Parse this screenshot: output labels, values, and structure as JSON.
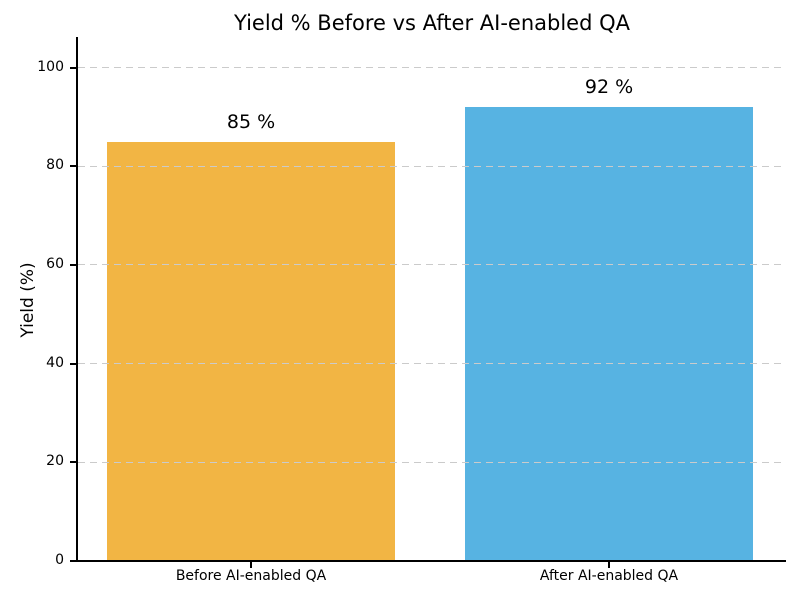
{
  "chart_data": {
    "type": "bar",
    "title": "Yield % Before vs After AI-enabled QA",
    "xlabel": "",
    "ylabel": "Yield (%)",
    "categories": [
      "Before AI-enabled QA",
      "After AI-enabled QA"
    ],
    "values": [
      85,
      92
    ],
    "value_labels": [
      "85 %",
      "92 %"
    ],
    "bar_colors": [
      "#F2B544",
      "#57B3E2"
    ],
    "ylim": [
      0,
      106
    ],
    "yticks": [
      0,
      20,
      40,
      60,
      80,
      100
    ],
    "ytick_labels": [
      "0",
      "20",
      "40",
      "60",
      "80",
      "100"
    ],
    "grid": "horizontal dashed, drawn over bars",
    "gridline_color": "#cbcbcb",
    "legend_position": "none",
    "spines": [
      "left",
      "bottom"
    ]
  }
}
